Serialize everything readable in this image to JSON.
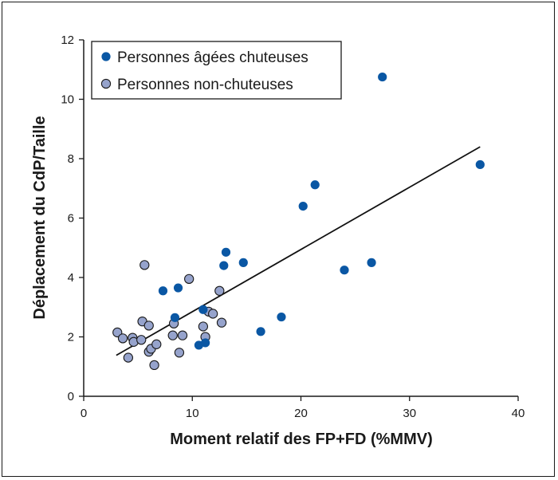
{
  "chart_data": {
    "type": "scatter",
    "xlabel": "Moment relatif des FP+FD (%MMV)",
    "ylabel": "Déplacement du CdP/Taille",
    "xlim": [
      0,
      40
    ],
    "ylim": [
      0,
      12
    ],
    "x_ticks": [
      0,
      10,
      20,
      30,
      40
    ],
    "y_ticks": [
      0,
      2,
      4,
      6,
      8,
      10,
      12
    ],
    "grid": false,
    "legend_position": "top-left",
    "series": [
      {
        "name": "Personnes âgées chuteuses",
        "color": "#0a57a4",
        "points": [
          [
            7.3,
            3.55
          ],
          [
            8.4,
            2.65
          ],
          [
            8.7,
            3.65
          ],
          [
            10.6,
            1.72
          ],
          [
            11.0,
            2.92
          ],
          [
            11.2,
            1.8
          ],
          [
            12.9,
            4.4
          ],
          [
            13.1,
            4.85
          ],
          [
            14.7,
            4.5
          ],
          [
            16.3,
            2.18
          ],
          [
            18.2,
            2.67
          ],
          [
            20.2,
            6.4
          ],
          [
            21.3,
            7.12
          ],
          [
            24.0,
            4.25
          ],
          [
            26.5,
            4.5
          ],
          [
            27.5,
            10.75
          ],
          [
            36.5,
            7.8
          ]
        ]
      },
      {
        "name": "Personnes non-chuteuses",
        "color": "#96a3cc",
        "points": [
          [
            3.1,
            2.15
          ],
          [
            3.6,
            1.95
          ],
          [
            4.1,
            1.3
          ],
          [
            4.5,
            1.97
          ],
          [
            4.6,
            1.83
          ],
          [
            5.3,
            1.9
          ],
          [
            5.4,
            2.52
          ],
          [
            5.6,
            4.42
          ],
          [
            6.0,
            2.38
          ],
          [
            6.0,
            1.5
          ],
          [
            6.2,
            1.6
          ],
          [
            6.5,
            1.05
          ],
          [
            6.7,
            1.75
          ],
          [
            8.2,
            2.05
          ],
          [
            8.3,
            2.45
          ],
          [
            8.8,
            1.47
          ],
          [
            9.1,
            2.05
          ],
          [
            9.7,
            3.95
          ],
          [
            11.0,
            2.35
          ],
          [
            11.2,
            2.0
          ],
          [
            11.5,
            2.85
          ],
          [
            11.9,
            2.78
          ],
          [
            12.5,
            3.55
          ],
          [
            12.7,
            2.48
          ]
        ]
      }
    ],
    "trendline": {
      "from": [
        3.0,
        1.38
      ],
      "to": [
        36.5,
        8.4
      ]
    }
  }
}
